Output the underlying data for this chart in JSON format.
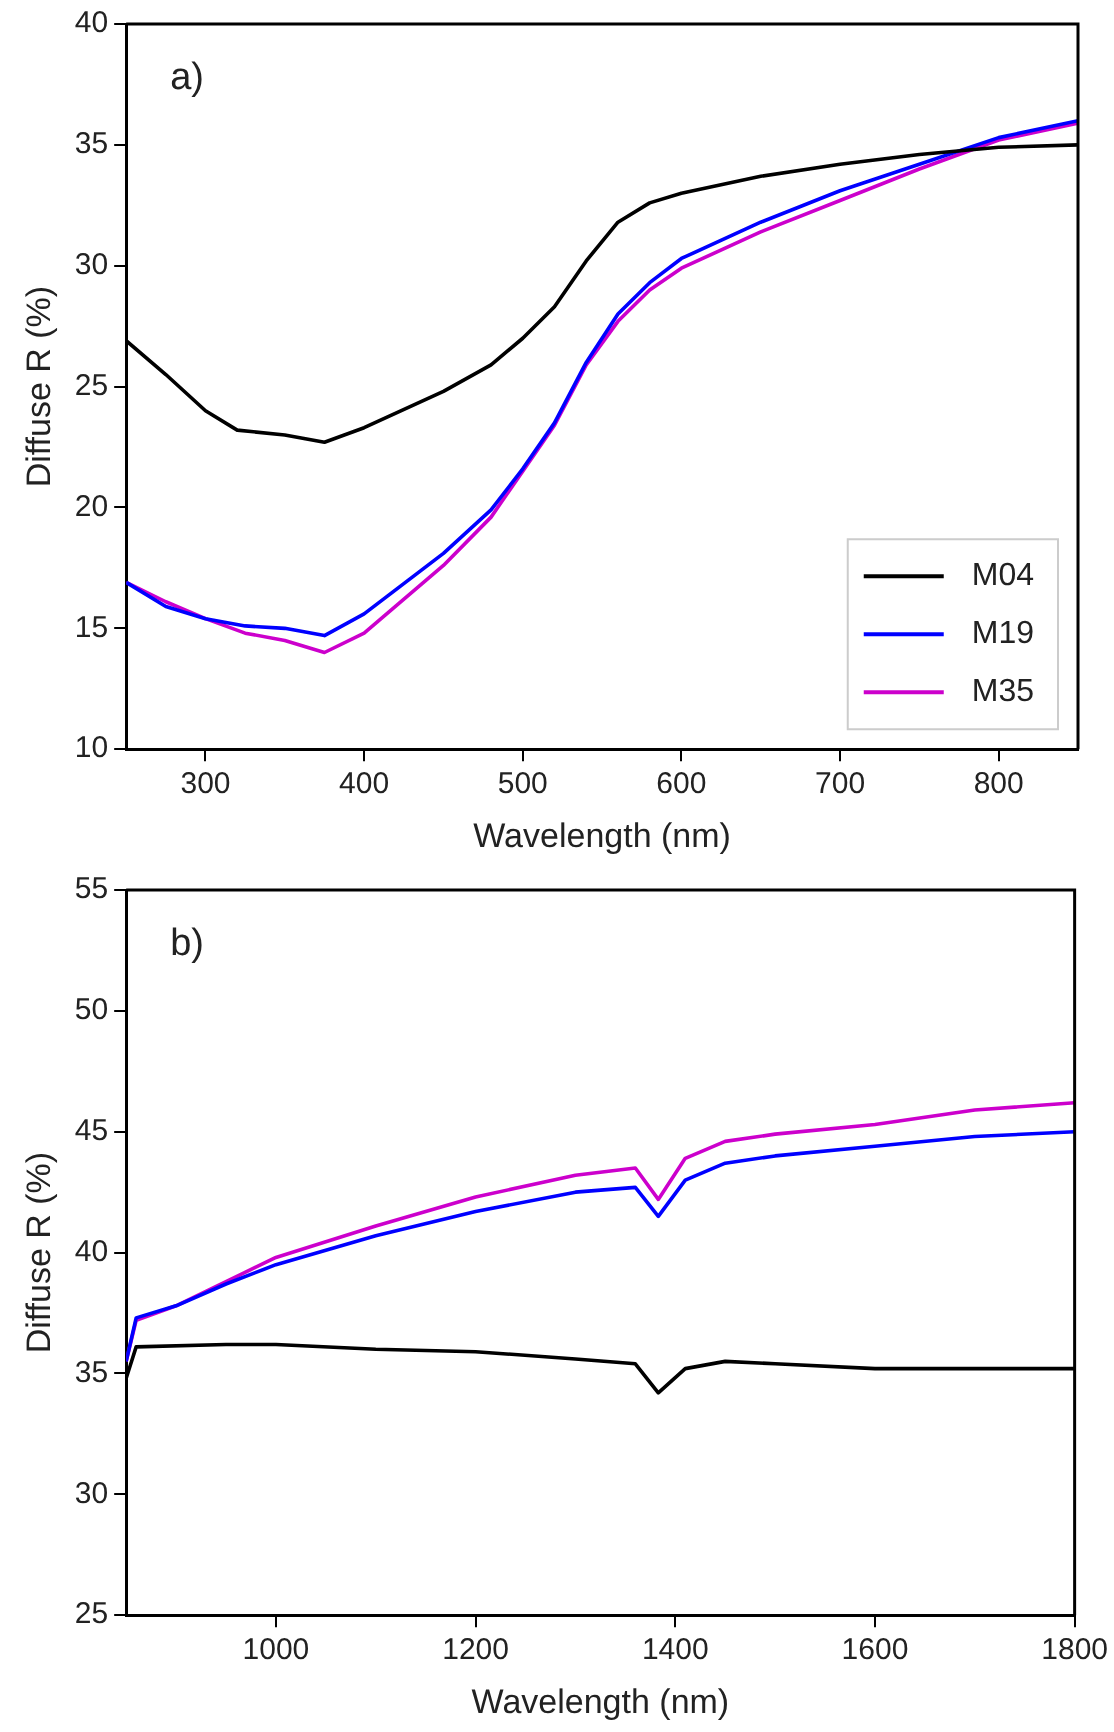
{
  "chart_data": [
    {
      "type": "line",
      "annotations": [
        "a)"
      ],
      "xlabel": "Wavelength (nm)",
      "ylabel": "Diffuse R (%)",
      "xlim": [
        250,
        850
      ],
      "xticks": [
        300,
        400,
        500,
        600,
        700,
        800
      ],
      "ylim": [
        10,
        40
      ],
      "yticks": [
        10,
        15,
        20,
        25,
        30,
        35,
        40
      ],
      "grid": false,
      "legend": "bottom right",
      "marker": "none",
      "line_style": "solid",
      "series": [
        {
          "name": "M04",
          "color": "#000000",
          "x": [
            250,
            275,
            300,
            320,
            350,
            375,
            400,
            450,
            480,
            500,
            520,
            540,
            560,
            580,
            600,
            650,
            700,
            750,
            800,
            850
          ],
          "values": [
            26.9,
            25.5,
            24.0,
            23.2,
            23.0,
            22.7,
            23.3,
            24.8,
            25.9,
            27.0,
            28.3,
            30.2,
            31.8,
            32.6,
            33.0,
            33.7,
            34.2,
            34.6,
            34.9,
            35.0
          ]
        },
        {
          "name": "M19",
          "color": "#0000ff",
          "x": [
            250,
            275,
            300,
            325,
            350,
            375,
            400,
            450,
            480,
            500,
            520,
            540,
            560,
            580,
            600,
            650,
            700,
            750,
            800,
            850
          ],
          "values": [
            16.9,
            15.9,
            15.4,
            15.1,
            15.0,
            14.7,
            15.6,
            18.1,
            19.9,
            21.6,
            23.5,
            26.0,
            28.0,
            29.3,
            30.3,
            31.8,
            33.1,
            34.2,
            35.3,
            36.0
          ]
        },
        {
          "name": "M35",
          "color": "#cc00cc",
          "x": [
            250,
            275,
            300,
            325,
            350,
            375,
            400,
            450,
            480,
            500,
            520,
            540,
            560,
            580,
            600,
            650,
            700,
            750,
            800,
            850
          ],
          "values": [
            16.9,
            16.1,
            15.4,
            14.8,
            14.5,
            14.0,
            14.8,
            17.6,
            19.6,
            21.5,
            23.4,
            25.9,
            27.7,
            29.0,
            29.9,
            31.4,
            32.7,
            34.0,
            35.2,
            35.9
          ]
        }
      ]
    },
    {
      "type": "line",
      "annotations": [
        "b)"
      ],
      "xlabel": "Wavelength (nm)",
      "ylabel": "Diffuse R (%)",
      "xlim": [
        850,
        1800
      ],
      "xticks": [
        1000,
        1200,
        1400,
        1600,
        1800
      ],
      "ylim": [
        25,
        55
      ],
      "yticks": [
        25,
        30,
        35,
        40,
        45,
        50,
        55
      ],
      "grid": false,
      "marker": "none",
      "line_style": "solid",
      "series": [
        {
          "color": "#000000",
          "x": [
            850,
            860,
            950,
            1000,
            1100,
            1200,
            1300,
            1360,
            1383,
            1410,
            1450,
            1500,
            1600,
            1700,
            1800
          ],
          "values": [
            34.8,
            36.1,
            36.2,
            36.2,
            36.0,
            35.9,
            35.6,
            35.4,
            34.2,
            35.2,
            35.5,
            35.4,
            35.2,
            35.2,
            35.2
          ]
        },
        {
          "color": "#0000ff",
          "x": [
            850,
            860,
            900,
            950,
            1000,
            1100,
            1200,
            1300,
            1360,
            1383,
            1410,
            1450,
            1500,
            1600,
            1700,
            1800
          ],
          "values": [
            35.5,
            37.3,
            37.8,
            38.7,
            39.5,
            40.7,
            41.7,
            42.5,
            42.7,
            41.5,
            43.0,
            43.7,
            44.0,
            44.4,
            44.8,
            45.0
          ]
        },
        {
          "color": "#cc00cc",
          "x": [
            850,
            860,
            900,
            950,
            1000,
            1100,
            1200,
            1300,
            1360,
            1383,
            1410,
            1450,
            1500,
            1600,
            1700,
            1800
          ],
          "values": [
            35.5,
            37.2,
            37.8,
            38.8,
            39.8,
            41.1,
            42.3,
            43.2,
            43.5,
            42.2,
            43.9,
            44.6,
            44.9,
            45.3,
            45.9,
            46.2
          ]
        }
      ]
    }
  ]
}
